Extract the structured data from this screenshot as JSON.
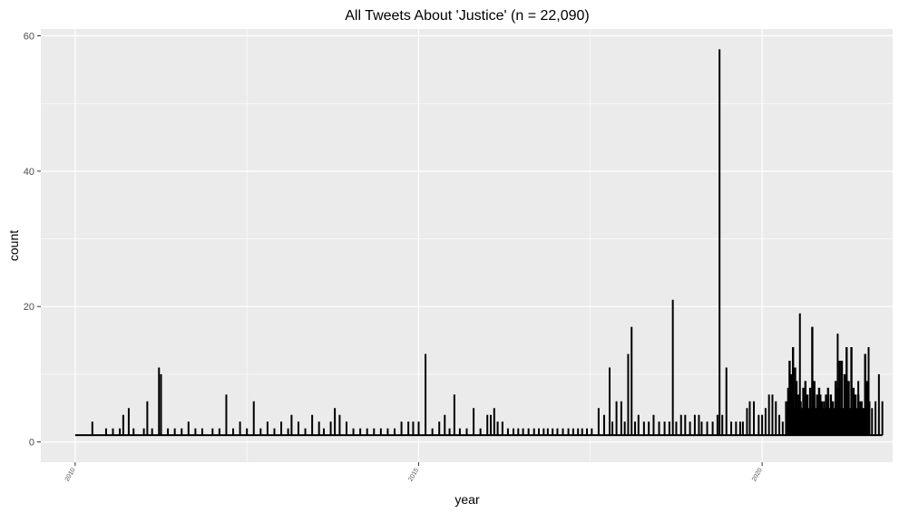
{
  "chart_data": {
    "type": "line",
    "title": "All Tweets About 'Justice' (n = 22,090)",
    "xlabel": "year",
    "ylabel": "count",
    "xlim": [
      2009.5,
      2021.9
    ],
    "ylim": [
      -3,
      61
    ],
    "x_ticks": [
      2010,
      2015,
      2020
    ],
    "y_ticks": [
      0,
      20,
      40,
      60
    ],
    "grid": true,
    "baseline": 1,
    "start_x": 2010.0,
    "end_x": 2021.75,
    "series": [
      {
        "name": "",
        "points": [
          {
            "x": 2010.25,
            "y": 3
          },
          {
            "x": 2010.45,
            "y": 2
          },
          {
            "x": 2010.55,
            "y": 2
          },
          {
            "x": 2010.65,
            "y": 2
          },
          {
            "x": 2010.7,
            "y": 4
          },
          {
            "x": 2010.78,
            "y": 5
          },
          {
            "x": 2010.85,
            "y": 2
          },
          {
            "x": 2011.0,
            "y": 2
          },
          {
            "x": 2011.05,
            "y": 6
          },
          {
            "x": 2011.12,
            "y": 2
          },
          {
            "x": 2011.22,
            "y": 11
          },
          {
            "x": 2011.25,
            "y": 10
          },
          {
            "x": 2011.35,
            "y": 2
          },
          {
            "x": 2011.45,
            "y": 2
          },
          {
            "x": 2011.55,
            "y": 2
          },
          {
            "x": 2011.65,
            "y": 3
          },
          {
            "x": 2011.75,
            "y": 2
          },
          {
            "x": 2011.85,
            "y": 2
          },
          {
            "x": 2012.0,
            "y": 2
          },
          {
            "x": 2012.1,
            "y": 2
          },
          {
            "x": 2012.2,
            "y": 7
          },
          {
            "x": 2012.3,
            "y": 2
          },
          {
            "x": 2012.4,
            "y": 3
          },
          {
            "x": 2012.5,
            "y": 2
          },
          {
            "x": 2012.6,
            "y": 6
          },
          {
            "x": 2012.7,
            "y": 2
          },
          {
            "x": 2012.8,
            "y": 3
          },
          {
            "x": 2012.9,
            "y": 2
          },
          {
            "x": 2013.0,
            "y": 3
          },
          {
            "x": 2013.1,
            "y": 2
          },
          {
            "x": 2013.15,
            "y": 4
          },
          {
            "x": 2013.25,
            "y": 3
          },
          {
            "x": 2013.35,
            "y": 2
          },
          {
            "x": 2013.45,
            "y": 4
          },
          {
            "x": 2013.55,
            "y": 3
          },
          {
            "x": 2013.62,
            "y": 2
          },
          {
            "x": 2013.72,
            "y": 3
          },
          {
            "x": 2013.78,
            "y": 5
          },
          {
            "x": 2013.85,
            "y": 4
          },
          {
            "x": 2013.95,
            "y": 3
          },
          {
            "x": 2014.05,
            "y": 2
          },
          {
            "x": 2014.15,
            "y": 2
          },
          {
            "x": 2014.25,
            "y": 2
          },
          {
            "x": 2014.35,
            "y": 2
          },
          {
            "x": 2014.45,
            "y": 2
          },
          {
            "x": 2014.55,
            "y": 2
          },
          {
            "x": 2014.65,
            "y": 2
          },
          {
            "x": 2014.75,
            "y": 3
          },
          {
            "x": 2014.85,
            "y": 3
          },
          {
            "x": 2014.92,
            "y": 3
          },
          {
            "x": 2015.0,
            "y": 3
          },
          {
            "x": 2015.1,
            "y": 13
          },
          {
            "x": 2015.2,
            "y": 2
          },
          {
            "x": 2015.3,
            "y": 3
          },
          {
            "x": 2015.38,
            "y": 4
          },
          {
            "x": 2015.45,
            "y": 2
          },
          {
            "x": 2015.52,
            "y": 7
          },
          {
            "x": 2015.6,
            "y": 2
          },
          {
            "x": 2015.7,
            "y": 2
          },
          {
            "x": 2015.8,
            "y": 5
          },
          {
            "x": 2015.9,
            "y": 2
          },
          {
            "x": 2016.0,
            "y": 4
          },
          {
            "x": 2016.05,
            "y": 4
          },
          {
            "x": 2016.1,
            "y": 5
          },
          {
            "x": 2016.15,
            "y": 3
          },
          {
            "x": 2016.22,
            "y": 3
          },
          {
            "x": 2016.3,
            "y": 2
          },
          {
            "x": 2016.38,
            "y": 2
          },
          {
            "x": 2016.45,
            "y": 2
          },
          {
            "x": 2016.52,
            "y": 2
          },
          {
            "x": 2016.6,
            "y": 2
          },
          {
            "x": 2016.68,
            "y": 2
          },
          {
            "x": 2016.75,
            "y": 2
          },
          {
            "x": 2016.82,
            "y": 2
          },
          {
            "x": 2016.88,
            "y": 2
          },
          {
            "x": 2016.95,
            "y": 2
          },
          {
            "x": 2017.02,
            "y": 2
          },
          {
            "x": 2017.1,
            "y": 2
          },
          {
            "x": 2017.18,
            "y": 2
          },
          {
            "x": 2017.25,
            "y": 2
          },
          {
            "x": 2017.32,
            "y": 2
          },
          {
            "x": 2017.38,
            "y": 2
          },
          {
            "x": 2017.45,
            "y": 2
          },
          {
            "x": 2017.52,
            "y": 2
          },
          {
            "x": 2017.62,
            "y": 5
          },
          {
            "x": 2017.7,
            "y": 4
          },
          {
            "x": 2017.78,
            "y": 11
          },
          {
            "x": 2017.82,
            "y": 3
          },
          {
            "x": 2017.88,
            "y": 6
          },
          {
            "x": 2017.95,
            "y": 6
          },
          {
            "x": 2018.0,
            "y": 3
          },
          {
            "x": 2018.05,
            "y": 13
          },
          {
            "x": 2018.1,
            "y": 17
          },
          {
            "x": 2018.15,
            "y": 3
          },
          {
            "x": 2018.2,
            "y": 4
          },
          {
            "x": 2018.28,
            "y": 3
          },
          {
            "x": 2018.35,
            "y": 3
          },
          {
            "x": 2018.42,
            "y": 4
          },
          {
            "x": 2018.5,
            "y": 3
          },
          {
            "x": 2018.58,
            "y": 3
          },
          {
            "x": 2018.65,
            "y": 3
          },
          {
            "x": 2018.7,
            "y": 21
          },
          {
            "x": 2018.75,
            "y": 3
          },
          {
            "x": 2018.82,
            "y": 4
          },
          {
            "x": 2018.88,
            "y": 4
          },
          {
            "x": 2018.95,
            "y": 3
          },
          {
            "x": 2019.02,
            "y": 4
          },
          {
            "x": 2019.08,
            "y": 4
          },
          {
            "x": 2019.12,
            "y": 3
          },
          {
            "x": 2019.2,
            "y": 3
          },
          {
            "x": 2019.28,
            "y": 3
          },
          {
            "x": 2019.35,
            "y": 4
          },
          {
            "x": 2019.38,
            "y": 58
          },
          {
            "x": 2019.42,
            "y": 4
          },
          {
            "x": 2019.48,
            "y": 11
          },
          {
            "x": 2019.55,
            "y": 3
          },
          {
            "x": 2019.62,
            "y": 3
          },
          {
            "x": 2019.68,
            "y": 3
          },
          {
            "x": 2019.72,
            "y": 3
          },
          {
            "x": 2019.78,
            "y": 5
          },
          {
            "x": 2019.82,
            "y": 6
          },
          {
            "x": 2019.88,
            "y": 6
          },
          {
            "x": 2019.95,
            "y": 4
          },
          {
            "x": 2020.0,
            "y": 4
          },
          {
            "x": 2020.05,
            "y": 5
          },
          {
            "x": 2020.1,
            "y": 7
          },
          {
            "x": 2020.15,
            "y": 7
          },
          {
            "x": 2020.2,
            "y": 6
          },
          {
            "x": 2020.25,
            "y": 4
          },
          {
            "x": 2020.3,
            "y": 3
          },
          {
            "x": 2020.35,
            "y": 4
          },
          {
            "x": 2020.42,
            "y": 5
          },
          {
            "x": 2020.5,
            "y": 5
          },
          {
            "x": 2020.55,
            "y": 19
          },
          {
            "x": 2020.6,
            "y": 7
          },
          {
            "x": 2020.65,
            "y": 5
          },
          {
            "x": 2020.7,
            "y": 5
          },
          {
            "x": 2020.75,
            "y": 7
          },
          {
            "x": 2020.8,
            "y": 6
          },
          {
            "x": 2020.85,
            "y": 7
          },
          {
            "x": 2020.9,
            "y": 6
          },
          {
            "x": 2020.95,
            "y": 5
          },
          {
            "x": 2021.0,
            "y": 5
          },
          {
            "x": 2021.05,
            "y": 4
          },
          {
            "x": 2021.1,
            "y": 16
          },
          {
            "x": 2021.15,
            "y": 5
          },
          {
            "x": 2021.2,
            "y": 5
          },
          {
            "x": 2021.25,
            "y": 5
          },
          {
            "x": 2021.3,
            "y": 5
          },
          {
            "x": 2021.35,
            "y": 6
          },
          {
            "x": 2021.4,
            "y": 9
          },
          {
            "x": 2021.45,
            "y": 6
          },
          {
            "x": 2021.5,
            "y": 5
          },
          {
            "x": 2021.55,
            "y": 14
          },
          {
            "x": 2021.6,
            "y": 5
          },
          {
            "x": 2021.65,
            "y": 6
          },
          {
            "x": 2021.7,
            "y": 10
          },
          {
            "x": 2021.75,
            "y": 6
          }
        ]
      }
    ],
    "dense_region": {
      "points": [
        {
          "x": 2020.35,
          "y": 6
        },
        {
          "x": 2020.38,
          "y": 8
        },
        {
          "x": 2020.4,
          "y": 12
        },
        {
          "x": 2020.42,
          "y": 10
        },
        {
          "x": 2020.45,
          "y": 14
        },
        {
          "x": 2020.48,
          "y": 11
        },
        {
          "x": 2020.5,
          "y": 9
        },
        {
          "x": 2020.53,
          "y": 7
        },
        {
          "x": 2020.56,
          "y": 6
        },
        {
          "x": 2020.6,
          "y": 8
        },
        {
          "x": 2020.63,
          "y": 9
        },
        {
          "x": 2020.66,
          "y": 7
        },
        {
          "x": 2020.7,
          "y": 8
        },
        {
          "x": 2020.73,
          "y": 17
        },
        {
          "x": 2020.76,
          "y": 9
        },
        {
          "x": 2020.8,
          "y": 7
        },
        {
          "x": 2020.83,
          "y": 8
        },
        {
          "x": 2020.87,
          "y": 6
        },
        {
          "x": 2020.9,
          "y": 5
        },
        {
          "x": 2020.93,
          "y": 7
        },
        {
          "x": 2020.96,
          "y": 8
        },
        {
          "x": 2021.0,
          "y": 7
        },
        {
          "x": 2021.03,
          "y": 6
        },
        {
          "x": 2021.07,
          "y": 9
        },
        {
          "x": 2021.1,
          "y": 8
        },
        {
          "x": 2021.13,
          "y": 12
        },
        {
          "x": 2021.16,
          "y": 12
        },
        {
          "x": 2021.2,
          "y": 10
        },
        {
          "x": 2021.23,
          "y": 14
        },
        {
          "x": 2021.26,
          "y": 9
        },
        {
          "x": 2021.3,
          "y": 14
        },
        {
          "x": 2021.33,
          "y": 8
        },
        {
          "x": 2021.36,
          "y": 7
        },
        {
          "x": 2021.4,
          "y": 7
        },
        {
          "x": 2021.43,
          "y": 6
        },
        {
          "x": 2021.46,
          "y": 5
        },
        {
          "x": 2021.5,
          "y": 13
        },
        {
          "x": 2021.53,
          "y": 9
        },
        {
          "x": 2021.56,
          "y": 6
        }
      ]
    }
  }
}
